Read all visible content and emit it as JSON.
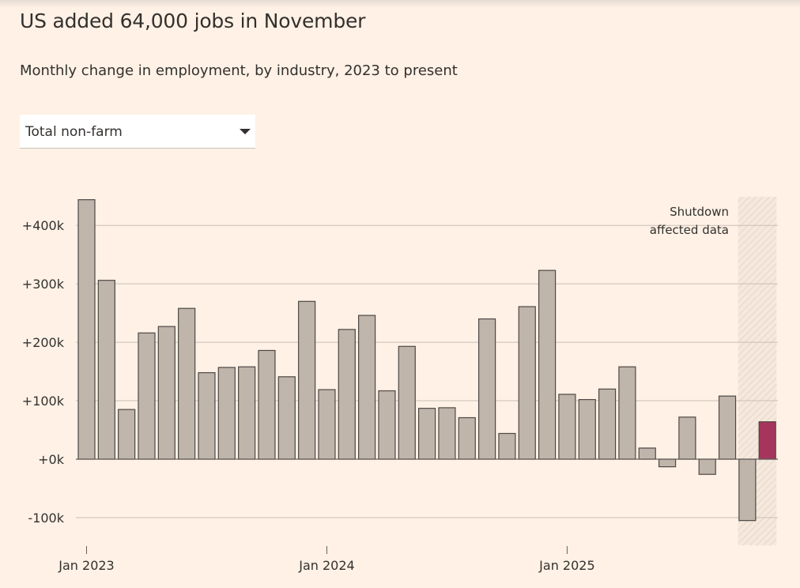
{
  "title": "US added 64,000 jobs in November",
  "subtitle": "Monthly change in employment, by industry, 2023 to present",
  "dropdown": {
    "selected": "Total non-farm",
    "icon": "caret-down-icon"
  },
  "colors": {
    "background": "#FFF1E5",
    "bar": "#C0B5AB",
    "bar_stroke": "#4D4845",
    "highlight": "#A6355C",
    "gridline": "#C9BFB6",
    "text": "#33302E"
  },
  "chart_data": {
    "type": "bar",
    "title": "US added 64,000 jobs in November",
    "subtitle": "Monthly change in employment, by industry, 2023 to present",
    "xlabel": "",
    "ylabel": "",
    "ylim": [
      -150,
      450
    ],
    "yticks": [
      -100,
      0,
      100,
      200,
      300,
      400
    ],
    "ytick_labels": [
      "-100k",
      "+0k",
      "+100k",
      "+200k",
      "+300k",
      "+400k"
    ],
    "xticks": [
      {
        "category": "2023-01",
        "label": "Jan 2023"
      },
      {
        "category": "2024-01",
        "label": "Jan 2024"
      },
      {
        "category": "2025-01",
        "label": "Jan 2025"
      }
    ],
    "unit": "thousands of jobs",
    "grid": true,
    "categories": [
      "2023-01",
      "2023-02",
      "2023-03",
      "2023-04",
      "2023-05",
      "2023-06",
      "2023-07",
      "2023-08",
      "2023-09",
      "2023-10",
      "2023-11",
      "2023-12",
      "2024-01",
      "2024-02",
      "2024-03",
      "2024-04",
      "2024-05",
      "2024-06",
      "2024-07",
      "2024-08",
      "2024-09",
      "2024-10",
      "2024-11",
      "2024-12",
      "2025-01",
      "2025-02",
      "2025-03",
      "2025-04",
      "2025-05",
      "2025-06",
      "2025-07",
      "2025-08",
      "2025-09",
      "2025-10",
      "2025-11"
    ],
    "values": [
      444,
      306,
      85,
      216,
      227,
      258,
      148,
      157,
      158,
      186,
      141,
      270,
      119,
      222,
      246,
      117,
      193,
      87,
      88,
      71,
      240,
      44,
      261,
      323,
      111,
      102,
      120,
      158,
      19,
      -13,
      72,
      -26,
      108,
      -105,
      64
    ],
    "highlight_category": "2025-11",
    "shaded_region": {
      "from": "2025-10",
      "to": "2025-11",
      "label": [
        "Shutdown",
        "affected data"
      ]
    }
  }
}
